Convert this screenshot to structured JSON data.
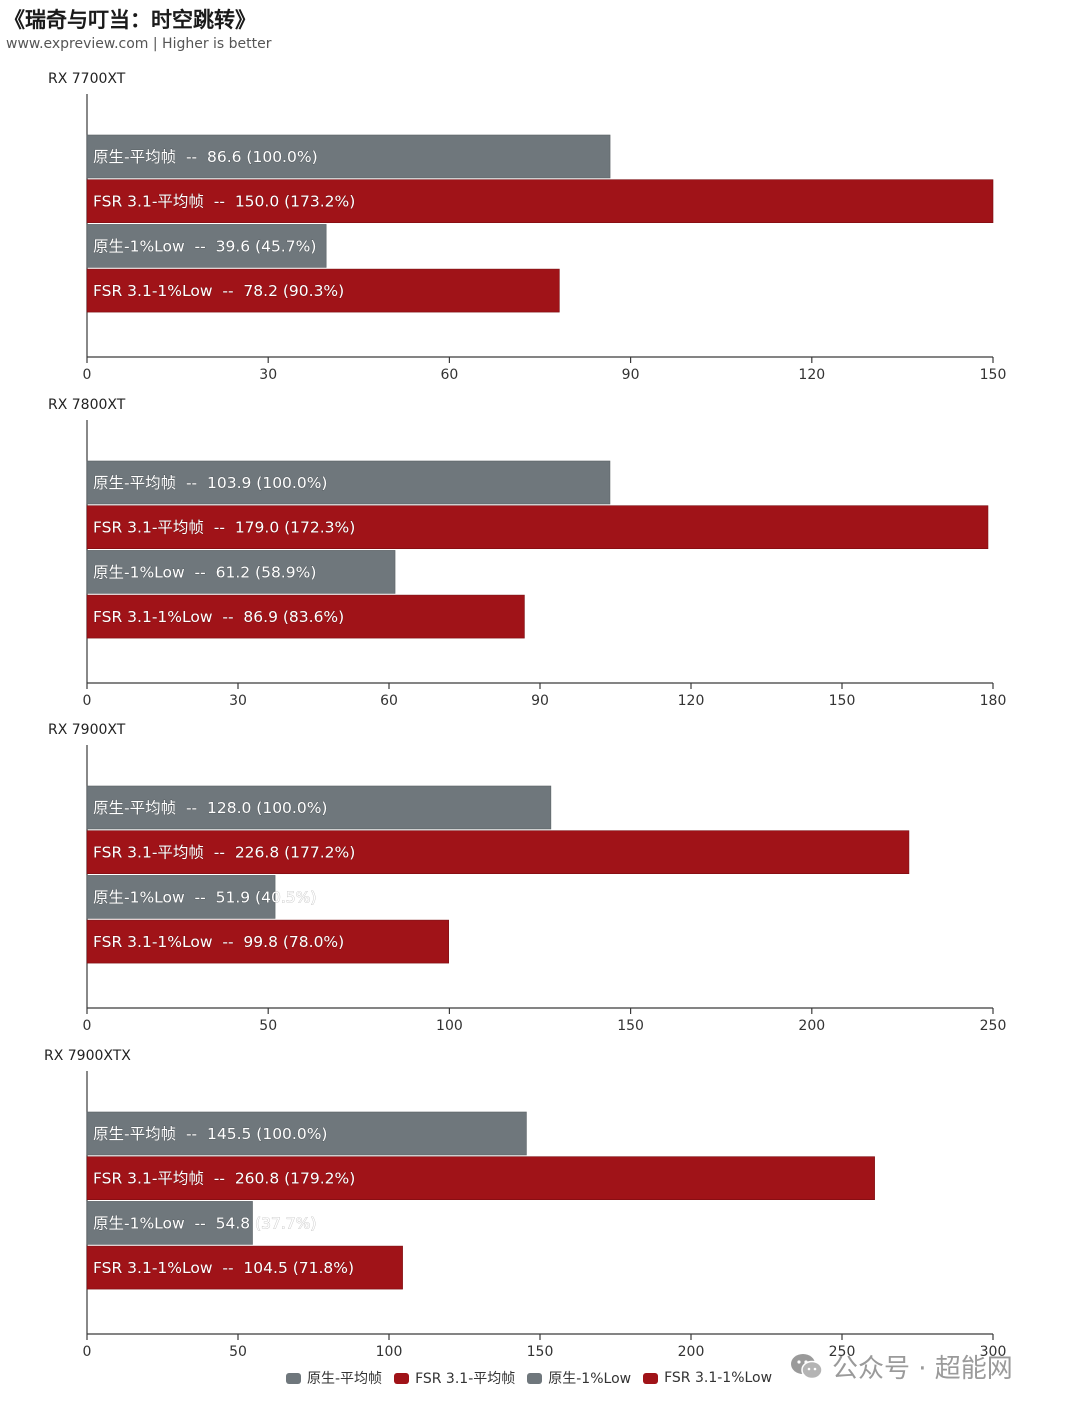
{
  "header": {
    "title": "《瑞奇与叮当：时空跳转》",
    "subtitle": "www.expreview.com | Higher is better"
  },
  "colors": {
    "native": "#6f777c",
    "fsr": "#a01318",
    "axis": "#3a3a3a",
    "label": "#ffffff",
    "tick": "#333333"
  },
  "chart_data": [
    {
      "type": "bar",
      "orientation": "horizontal",
      "title": "RX 7700XT",
      "xlim": [
        0,
        150
      ],
      "ticks": [
        "0",
        "30",
        "60",
        "90",
        "120",
        "150"
      ],
      "bars": [
        {
          "series": "原生-平均帧",
          "value": 86.6,
          "label": "原生-平均帧  --  86.6 (100.0%)"
        },
        {
          "series": "FSR 3.1-平均帧",
          "value": 150.0,
          "label": "FSR 3.1-平均帧  --  150.0 (173.2%)"
        },
        {
          "series": "原生-1%Low",
          "value": 39.6,
          "label": "原生-1%Low  --  39.6 (45.7%)"
        },
        {
          "series": "FSR 3.1-1%Low",
          "value": 78.2,
          "label": "FSR 3.1-1%Low  --  78.2 (90.3%)"
        }
      ]
    },
    {
      "type": "bar",
      "orientation": "horizontal",
      "title": "RX 7800XT",
      "xlim": [
        0,
        180
      ],
      "ticks": [
        "0",
        "30",
        "60",
        "90",
        "120",
        "150",
        "180"
      ],
      "bars": [
        {
          "series": "原生-平均帧",
          "value": 103.9,
          "label": "原生-平均帧  --  103.9 (100.0%)"
        },
        {
          "series": "FSR 3.1-平均帧",
          "value": 179.0,
          "label": "FSR 3.1-平均帧  --  179.0 (172.3%)"
        },
        {
          "series": "原生-1%Low",
          "value": 61.2,
          "label": "原生-1%Low  --  61.2 (58.9%)"
        },
        {
          "series": "FSR 3.1-1%Low",
          "value": 86.9,
          "label": "FSR 3.1-1%Low  --  86.9 (83.6%)"
        }
      ]
    },
    {
      "type": "bar",
      "orientation": "horizontal",
      "title": "RX 7900XT",
      "xlim": [
        0,
        250
      ],
      "ticks": [
        "0",
        "50",
        "100",
        "150",
        "200",
        "250"
      ],
      "bars": [
        {
          "series": "原生-平均帧",
          "value": 128.0,
          "label": "原生-平均帧  --  128.0 (100.0%)"
        },
        {
          "series": "FSR 3.1-平均帧",
          "value": 226.8,
          "label": "FSR 3.1-平均帧  --  226.8 (177.2%)"
        },
        {
          "series": "原生-1%Low",
          "value": 51.9,
          "label": "原生-1%Low  --  51.9 (40.5%)"
        },
        {
          "series": "FSR 3.1-1%Low",
          "value": 99.8,
          "label": "FSR 3.1-1%Low  --  99.8 (78.0%)"
        }
      ]
    },
    {
      "type": "bar",
      "orientation": "horizontal",
      "title": "RX 7900XTX",
      "xlim": [
        0,
        300
      ],
      "ticks": [
        "0",
        "50",
        "100",
        "150",
        "200",
        "250",
        "300"
      ],
      "bars": [
        {
          "series": "原生-平均帧",
          "value": 145.5,
          "label": "原生-平均帧  --  145.5 (100.0%)"
        },
        {
          "series": "FSR 3.1-平均帧",
          "value": 260.8,
          "label": "FSR 3.1-平均帧  --  260.8 (179.2%)"
        },
        {
          "series": "原生-1%Low",
          "value": 54.8,
          "label": "原生-1%Low  --  54.8 (37.7%)"
        },
        {
          "series": "FSR 3.1-1%Low",
          "value": 104.5,
          "label": "FSR 3.1-1%Low  --  104.5 (71.8%)"
        }
      ]
    }
  ],
  "legend": {
    "placement": "bottom",
    "items": [
      {
        "label": "原生-平均帧",
        "color": "#6f777c"
      },
      {
        "label": "FSR 3.1-平均帧",
        "color": "#a01318"
      },
      {
        "label": "原生-1%Low",
        "color": "#6f777c"
      },
      {
        "label": "FSR 3.1-1%Low",
        "color": "#a01318"
      }
    ]
  },
  "watermark": {
    "icon": "wechat-icon",
    "text": "公众号 · 超能网"
  }
}
